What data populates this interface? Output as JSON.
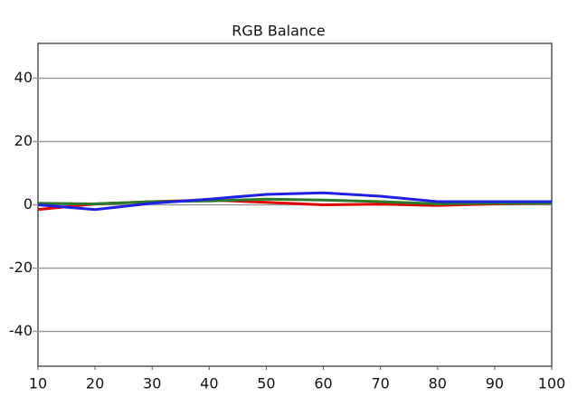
{
  "chart_data": {
    "type": "line",
    "title": "RGB Balance",
    "x": [
      10,
      20,
      30,
      40,
      50,
      60,
      70,
      80,
      90,
      100
    ],
    "series": [
      {
        "color": "#e00000",
        "values": [
          -1.5,
          0.3,
          1,
          1.5,
          0.8,
          0,
          0.2,
          -0.2,
          0.3,
          0.5
        ]
      },
      {
        "color": "#2a7a2a",
        "values": [
          0.5,
          0.3,
          1,
          1.2,
          1.8,
          1.5,
          1,
          0.3,
          0.5,
          0.5
        ]
      },
      {
        "color": "#2020e0",
        "values": [
          0,
          -1.5,
          0.5,
          1.8,
          3.3,
          3.8,
          2.7,
          1,
          1,
          1
        ]
      }
    ],
    "xlim": [
      10,
      100
    ],
    "xticks": [
      10,
      20,
      30,
      40,
      50,
      60,
      70,
      80,
      90,
      100
    ],
    "ylim": [
      -51,
      51
    ],
    "yticks": [
      -40,
      -20,
      0,
      20,
      40
    ],
    "grid": true
  }
}
